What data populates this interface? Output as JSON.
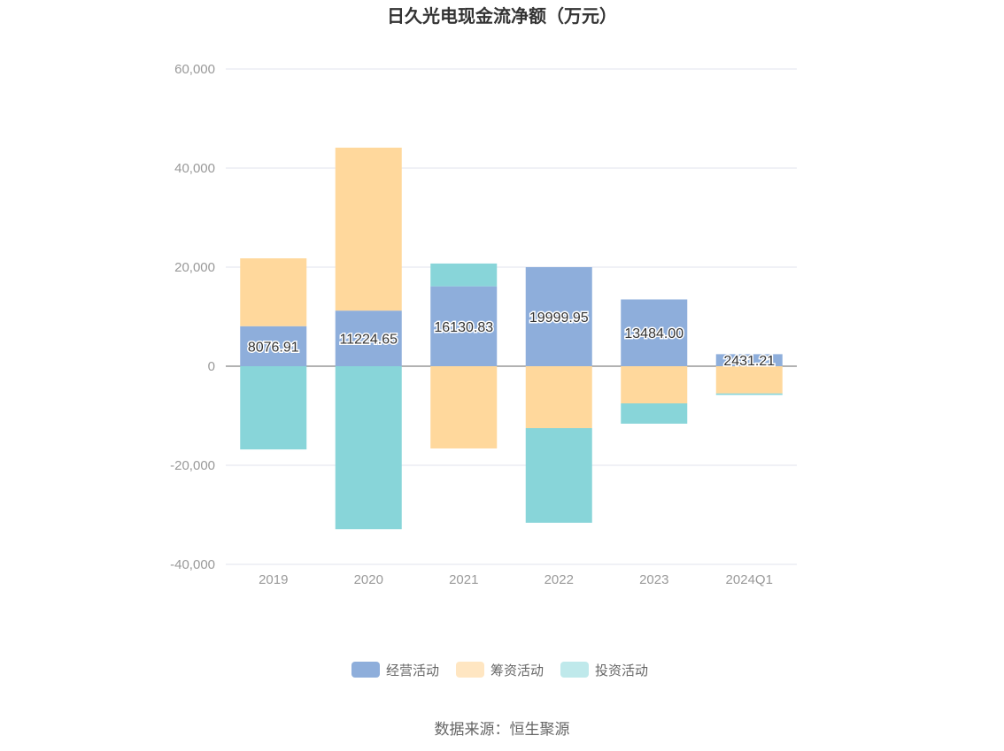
{
  "chart_data": {
    "type": "bar",
    "stacked": true,
    "title": "日久光电现金流净额（万元）",
    "categories": [
      "2019",
      "2020",
      "2021",
      "2022",
      "2023",
      "2024Q1"
    ],
    "series": [
      {
        "name": "经营活动",
        "color": "#8eaedb",
        "values": [
          8076.91,
          11224.65,
          16130.83,
          19999.95,
          13484.0,
          2431.21
        ],
        "labels": [
          "8076.91",
          "11224.65",
          "16130.83",
          "19999.95",
          "13484.00",
          "2431.21"
        ]
      },
      {
        "name": "筹资活动",
        "color": "#ffd89c",
        "values": [
          13700,
          32900,
          -16600,
          -12500,
          -7500,
          -5500
        ]
      },
      {
        "name": "投资活动",
        "color": "#88d5d9",
        "values": [
          -16800,
          -32900,
          4600,
          -19100,
          -4100,
          -300
        ]
      }
    ],
    "ylim": [
      -40000,
      60000
    ],
    "yticks": [
      -40000,
      -20000,
      0,
      20000,
      40000,
      60000
    ],
    "ytick_labels": [
      "-40,000",
      "-20,000",
      "0",
      "20,000",
      "40,000",
      "60,000"
    ],
    "grid": true,
    "legend": "bottom",
    "legend_colors": [
      "#8eaedb",
      "#ffe6c2",
      "#bfe9eb"
    ]
  },
  "source": "数据来源：恒生聚源"
}
